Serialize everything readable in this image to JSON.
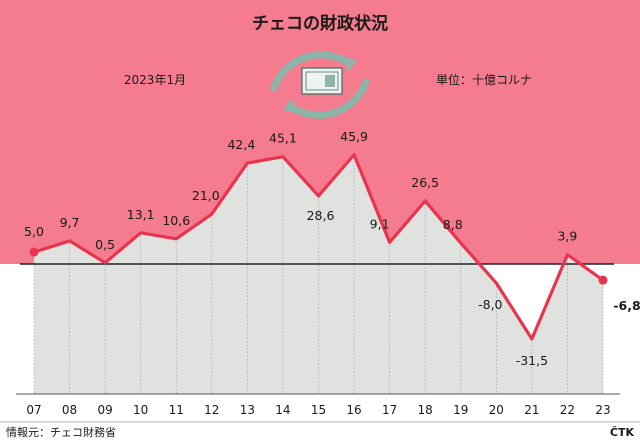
{
  "header": {
    "title": "チェコの財政状況",
    "date_label": "2023年1月",
    "unit_label": "単位：十億コルナ",
    "icon": "currency-exchange-icon"
  },
  "footer": {
    "source": "情報元：チェコ財務省",
    "credit": "ČTK"
  },
  "colors": {
    "background_top": "#f47c8e",
    "line": "#e8344f",
    "area": "#dfe2df",
    "icon_arrows": "#8ab5a8"
  },
  "chart_data": {
    "type": "line",
    "title": "チェコの財政状況",
    "xlabel": "",
    "ylabel": "",
    "x": [
      "07",
      "08",
      "09",
      "10",
      "11",
      "12",
      "13",
      "14",
      "15",
      "16",
      "17",
      "18",
      "19",
      "20",
      "21",
      "22",
      "23"
    ],
    "values": [
      5.0,
      9.7,
      0.5,
      13.1,
      10.6,
      21.0,
      42.4,
      45.1,
      28.6,
      45.9,
      9.1,
      26.5,
      8.8,
      -8.0,
      -31.5,
      3.9,
      -6.8
    ],
    "value_labels": [
      "5,0",
      "9,7",
      "0,5",
      "13,1",
      "10,6",
      "21,0",
      "42,4",
      "45,1",
      "28,6",
      "45,9",
      "9,1",
      "26,5",
      "8,8",
      "-8,0",
      "-31,5",
      "3,9",
      "-6,8"
    ],
    "ylim": [
      -40,
      50
    ],
    "grid": "vertical drop lines",
    "legend": "none"
  }
}
